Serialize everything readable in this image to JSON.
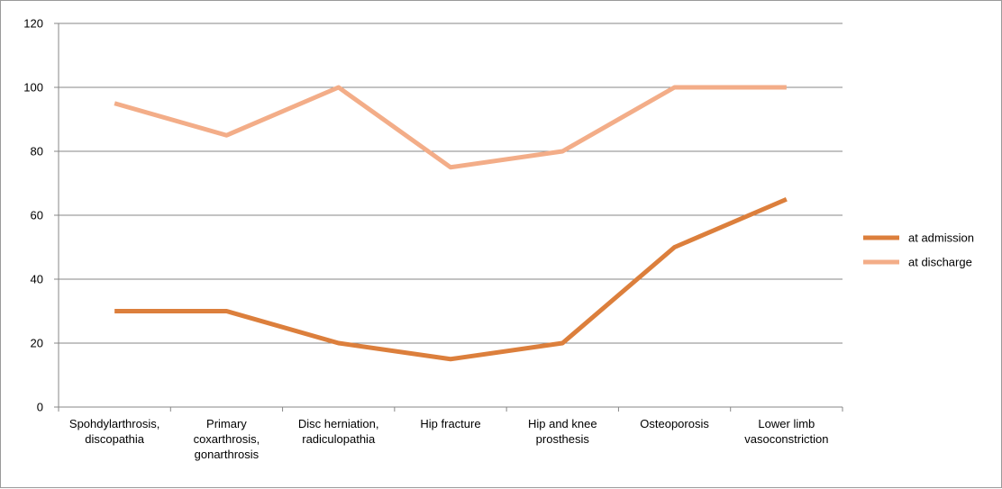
{
  "chart_data": {
    "type": "line",
    "categories": [
      [
        "Spohdylarthrosis,",
        "discopathia"
      ],
      [
        "Primary",
        "coxarthrosis,",
        "gonarthrosis"
      ],
      [
        "Disc herniation,",
        "radiculopathia"
      ],
      [
        "Hip fracture"
      ],
      [
        "Hip and knee",
        "prosthesis"
      ],
      [
        "Osteoporosis"
      ],
      [
        "Lower limb",
        "vasoconstriction"
      ]
    ],
    "series": [
      {
        "name": "at admission",
        "color": "#dc7f3c",
        "values": [
          30,
          30,
          20,
          15,
          20,
          50,
          65
        ]
      },
      {
        "name": "at discharge",
        "color": "#f3ad88",
        "values": [
          95,
          85,
          100,
          75,
          80,
          100,
          100
        ]
      }
    ],
    "ylim": [
      0,
      120
    ],
    "yticks": [
      0,
      20,
      40,
      60,
      80,
      100,
      120
    ],
    "grid": true,
    "legend": "right"
  }
}
